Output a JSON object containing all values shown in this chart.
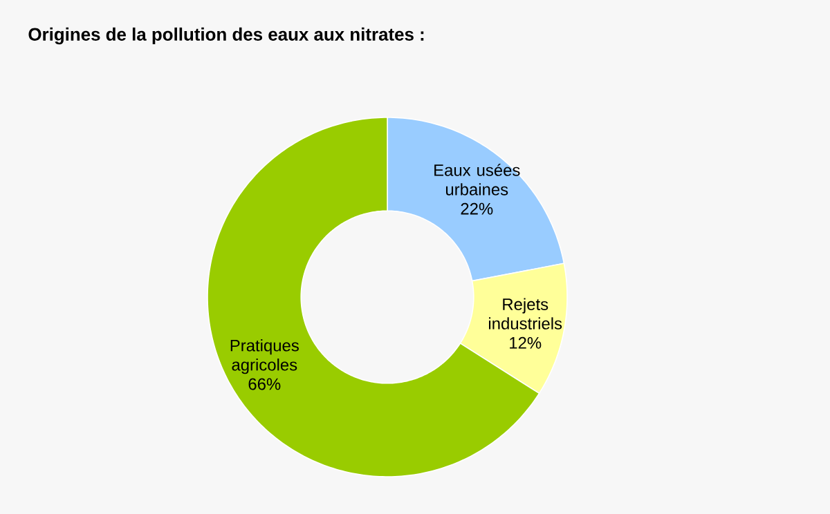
{
  "chart_data": {
    "type": "donut",
    "title": "Origines de la pollution des eaux aux nitrates :",
    "categories": [
      "Eaux usées urbaines",
      "Rejets industriels",
      "Pratiques agricoles"
    ],
    "values": [
      22,
      12,
      66
    ],
    "value_labels": [
      "22%",
      "12%",
      "66%"
    ],
    "colors": [
      "#99ccff",
      "#ffff99",
      "#99cc00"
    ]
  }
}
